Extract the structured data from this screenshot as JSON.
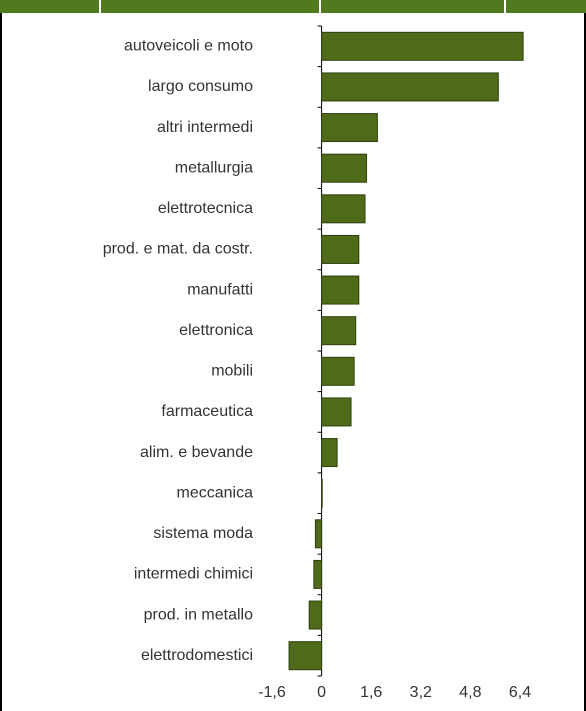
{
  "chart_data": {
    "type": "barh",
    "categories": [
      "autoveicoli e moto",
      "largo consumo",
      "altri intermedi",
      "metallurgia",
      "elettrotecnica",
      "prod. e mat. da costr.",
      "manufatti",
      "elettronica",
      "mobili",
      "farmaceutica",
      "alim. e bevande",
      "meccanica",
      "sistema moda",
      "intermedi chimici",
      "prod. in metallo",
      "elettrodomestici"
    ],
    "values": [
      6.5,
      5.7,
      1.8,
      1.45,
      1.4,
      1.2,
      1.2,
      1.1,
      1.05,
      0.95,
      0.5,
      0.02,
      -0.2,
      -0.25,
      -0.4,
      -1.05
    ],
    "color": "#4f6b1a",
    "xlim": [
      -1.6,
      6.4
    ],
    "xticks": [
      {
        "value": -1.6,
        "label": "-1,6"
      },
      0,
      {
        "value": 1.6,
        "label": "1,6"
      },
      {
        "value": 3.2,
        "label": "3,2"
      },
      {
        "value": 4.8,
        "label": "4,8"
      },
      {
        "value": 6.4,
        "label": "6,4"
      }
    ]
  }
}
